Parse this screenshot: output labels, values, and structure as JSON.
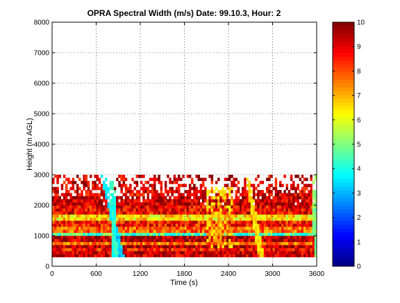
{
  "chart_data": {
    "type": "heatmap",
    "title": "OPRA Spectral Width (m/s)  Date: 99.10.3, Hour: 2",
    "xlabel": "Time (s)",
    "ylabel": "Height (m AGL)",
    "xlim": [
      0,
      3600
    ],
    "ylim": [
      0,
      8000
    ],
    "x_ticks": [
      "0",
      "600",
      "1200",
      "1800",
      "2400",
      "3000",
      "3600"
    ],
    "y_ticks": [
      "0",
      "1000",
      "2000",
      "3000",
      "4000",
      "5000",
      "6000",
      "7000",
      "8000"
    ],
    "grid": true,
    "colorbar": {
      "colormap": "jet",
      "range": [
        0,
        10
      ],
      "ticks": [
        "0",
        "1",
        "2",
        "3",
        "4",
        "5",
        "6",
        "7",
        "8",
        "9",
        "10"
      ]
    },
    "data_extent": {
      "time": [
        0,
        3600
      ],
      "height": [
        300,
        3100
      ]
    },
    "height_bands": [
      {
        "height_range": [
          300,
          500
        ],
        "level": 9.3
      },
      {
        "height_range": [
          500,
          600
        ],
        "level": 8.6
      },
      {
        "height_range": [
          600,
          750
        ],
        "level": 9.5
      },
      {
        "height_range": [
          750,
          850
        ],
        "level": 7.5
      },
      {
        "height_range": [
          850,
          1000
        ],
        "level": 9.4
      },
      {
        "height_range": [
          1000,
          1100
        ],
        "level": 4.5
      },
      {
        "height_range": [
          1100,
          1350
        ],
        "level": 7.8
      },
      {
        "height_range": [
          1350,
          1550
        ],
        "level": 8.6
      },
      {
        "height_range": [
          1550,
          1750
        ],
        "level": 6.5
      },
      {
        "height_range": [
          1750,
          2000
        ],
        "level": 8.8
      },
      {
        "height_range": [
          2000,
          2300
        ],
        "level": 9.3
      },
      {
        "height_range": [
          2300,
          2550
        ],
        "level": 9.0
      },
      {
        "height_range": [
          2550,
          3000
        ],
        "level": 9.2
      }
    ],
    "features": [
      {
        "description": "diagonal low-width streak",
        "time_at_3000m": 690,
        "time_at_300m": 950,
        "level": 3.3
      },
      {
        "description": "diagonal low-width streak",
        "time_at_3000m": 810,
        "time_at_300m": 860,
        "level": 4.2
      },
      {
        "description": "elevated width region",
        "time_range": [
          2100,
          2450
        ],
        "height_range": [
          600,
          2600
        ],
        "level": 6.8
      },
      {
        "description": "diagonal streak",
        "time_at_3000m": 2650,
        "time_at_300m": 2850,
        "level": 6.5
      },
      {
        "description": "streak at end",
        "time_at_3000m": 3560,
        "time_at_300m": 3600,
        "level": 5.0
      }
    ]
  }
}
